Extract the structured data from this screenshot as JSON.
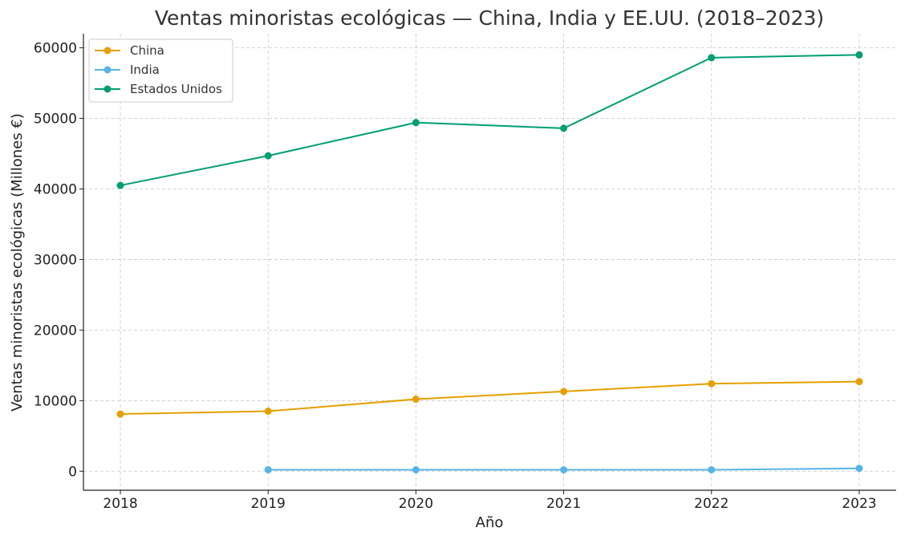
{
  "chart_data": {
    "type": "line",
    "title": "Ventas minoristas ecológicas — China, India y EE.UU. (2018–2023)",
    "xlabel": "Año",
    "ylabel": "Ventas minoristas ecológicas (Millones €)",
    "x": [
      2018,
      2019,
      2020,
      2021,
      2022,
      2023
    ],
    "x_tick_labels": [
      "2018",
      "2019",
      "2020",
      "2021",
      "2022",
      "2023"
    ],
    "y_ticks": [
      0,
      10000,
      20000,
      30000,
      40000,
      50000,
      60000
    ],
    "y_tick_labels": [
      "0",
      "10000",
      "20000",
      "30000",
      "40000",
      "50000",
      "60000"
    ],
    "ylim": [
      -2700,
      62000
    ],
    "xlim": [
      2017.75,
      2023.25
    ],
    "grid": true,
    "legend_position": "top-left",
    "series": [
      {
        "name": "China",
        "color": "#E69F00",
        "values": [
          8100,
          8500,
          10200,
          11300,
          12400,
          12700
        ]
      },
      {
        "name": "India",
        "color": "#56B4E9",
        "values": [
          null,
          200,
          200,
          200,
          200,
          400
        ]
      },
      {
        "name": "Estados Unidos",
        "color": "#009E73",
        "values": [
          40500,
          44700,
          49400,
          48600,
          58600,
          59000
        ]
      }
    ]
  }
}
